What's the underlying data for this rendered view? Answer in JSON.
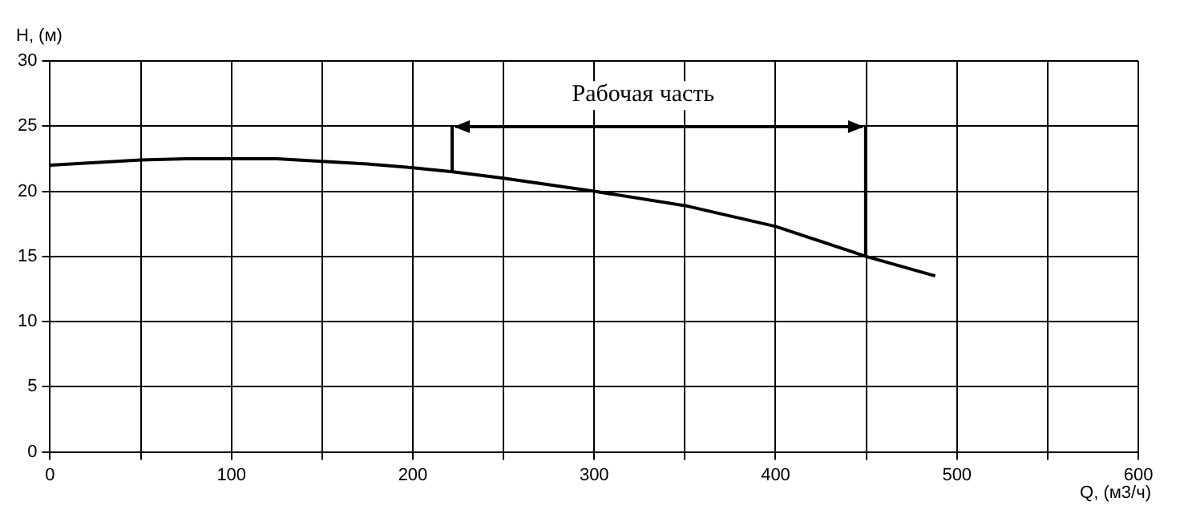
{
  "chart_data": {
    "type": "line",
    "xlabel": "Q, (м3/ч)",
    "ylabel": "H, (м)",
    "x": [
      0,
      25,
      50,
      75,
      100,
      125,
      150,
      175,
      200,
      222,
      250,
      300,
      350,
      400,
      450,
      488
    ],
    "series": [
      {
        "color": "#000000",
        "values": [
          22,
          22.2,
          22.4,
          22.5,
          22.5,
          22.5,
          22.3,
          22.1,
          21.8,
          21.5,
          21.0,
          20.0,
          18.9,
          17.3,
          15.0,
          13.5
        ]
      }
    ],
    "xlim": [
      0,
      600
    ],
    "ylim": [
      0,
      30
    ],
    "xticks": [
      0,
      {
        "value": 50,
        "label": null
      },
      100,
      {
        "value": 150,
        "label": null
      },
      200,
      {
        "value": 250,
        "label": null
      },
      300,
      {
        "value": 350,
        "label": null
      },
      400,
      {
        "value": 450,
        "label": null
      },
      500,
      {
        "value": 550,
        "label": null
      },
      600
    ],
    "yticks": [
      0,
      5,
      10,
      15,
      20,
      25,
      30
    ],
    "grid": true,
    "legend": false,
    "marker": "none",
    "line_style": "solid",
    "annotations": [
      "Рабочая часть"
    ]
  }
}
